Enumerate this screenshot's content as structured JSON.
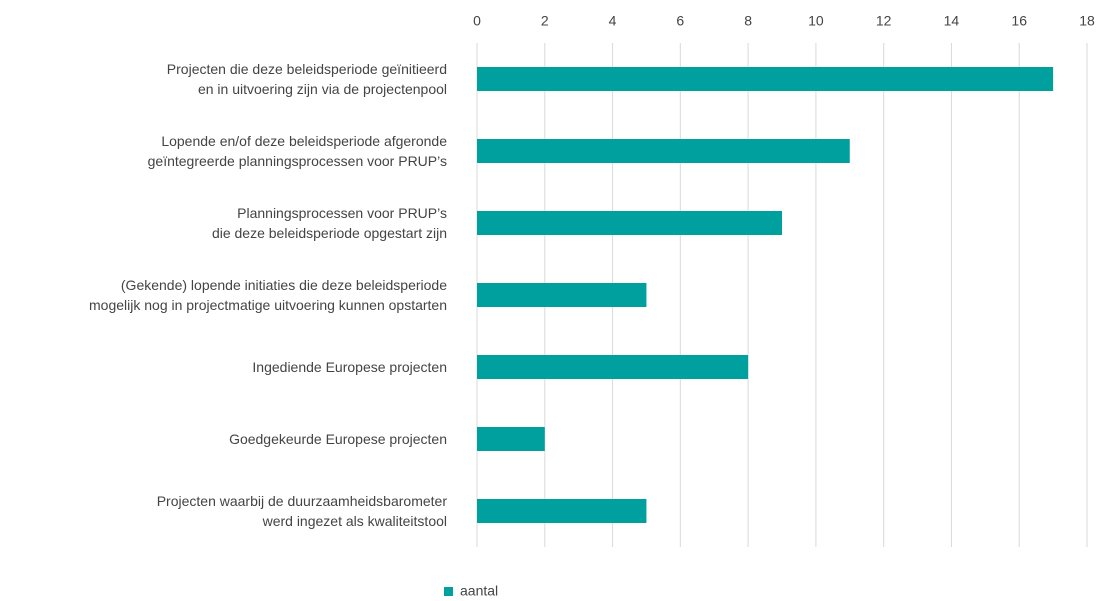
{
  "chart_data": {
    "type": "bar",
    "orientation": "horizontal",
    "categories": [
      "Projecten die deze beleidsperiode geïnitieerd\nen in uitvoering zijn via de projectenpool",
      "Lopende en/of deze beleidsperiode afgeronde\ngeïntegreerde planningsprocessen voor PRUP’s",
      "Planningsprocessen voor PRUP’s\ndie deze beleidsperiode opgestart zijn",
      "(Gekende) lopende initiaties die deze beleidsperiode\nmogelijk nog in projectmatige uitvoering kunnen opstarten",
      "Ingediende Europese projecten",
      "Goedgekeurde Europese projecten",
      "Projecten waarbij de duurzaamheidsbarometer\nwerd ingezet als kwaliteitstool"
    ],
    "series": [
      {
        "name": "aantal",
        "color": "#00a09f",
        "values": [
          17,
          11,
          9,
          5,
          8,
          2,
          5
        ]
      }
    ],
    "xlim": [
      0,
      18
    ],
    "xticks": [
      0,
      2,
      4,
      6,
      8,
      10,
      12,
      14,
      16,
      18
    ],
    "grid": true,
    "legend": "bottom"
  }
}
